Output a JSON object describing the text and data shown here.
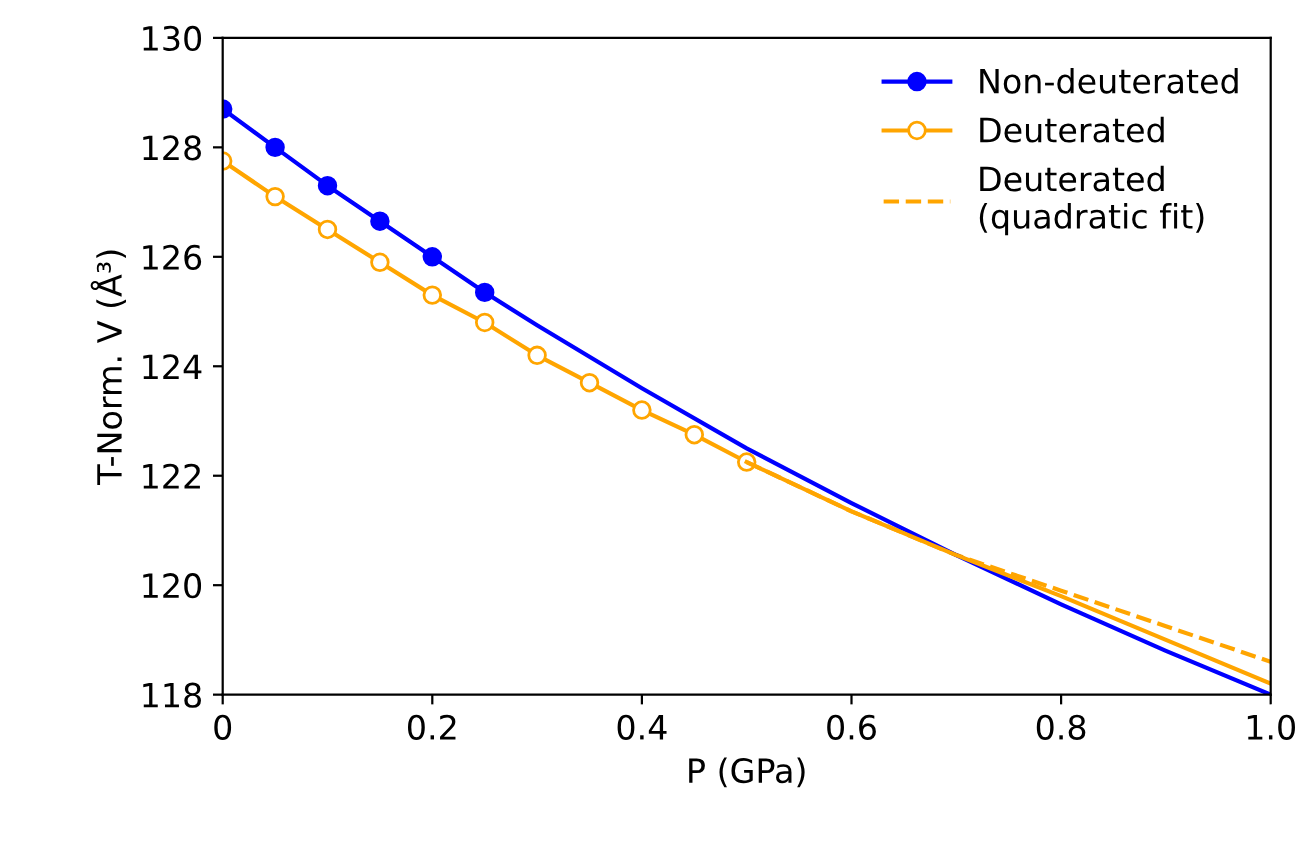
{
  "chart_data": {
    "type": "line",
    "xlabel": "P (GPa)",
    "ylabel": "T-Norm. V (Å³)",
    "xlim": [
      0,
      1
    ],
    "xticks": [
      0,
      0.2,
      0.4,
      0.6,
      0.8,
      {
        "value": 1,
        "label": "1.0"
      }
    ],
    "ylim": [
      118,
      130
    ],
    "yticks": [
      118,
      120,
      122,
      124,
      126,
      128,
      130
    ],
    "grid": false,
    "legend": "top right",
    "series": [
      {
        "name": "Non-deuterated",
        "color": "#0000ff",
        "marker": "circle",
        "line_style": "solid",
        "x": [
          0,
          0.05,
          0.1,
          0.15,
          0.2,
          0.25
        ],
        "values": [
          128.7,
          128.0,
          127.3,
          126.65,
          126.0,
          125.35
        ]
      },
      {
        "name": "Deuterated",
        "color": "#ffa500",
        "marker": "circle",
        "line_style": "solid",
        "x": [
          0,
          0.05,
          0.1,
          0.15,
          0.2,
          0.25,
          0.3,
          0.35,
          0.4,
          0.45,
          0.5
        ],
        "values": [
          127.75,
          127.1,
          126.5,
          125.9,
          125.3,
          124.8,
          124.2,
          123.7,
          123.2,
          122.75,
          122.25
        ]
      },
      {
        "name": "Deuterated\n(quadratic fit)",
        "color": "#ffa500",
        "marker": "none",
        "line_style": "dashed",
        "x": [
          0.5,
          0.6,
          0.7,
          0.8,
          0.9,
          1.0
        ],
        "values": [
          122.25,
          121.35,
          120.55,
          119.9,
          119.25,
          118.6
        ]
      },
      {
        "color": "#0000ff",
        "marker": "none",
        "line_style": "solid",
        "x": [
          0.25,
          0.3,
          0.4,
          0.5,
          0.6,
          0.7,
          0.8,
          0.9,
          1.0
        ],
        "values": [
          125.35,
          124.75,
          123.6,
          122.5,
          121.5,
          120.55,
          119.65,
          118.8,
          118.0
        ]
      },
      {
        "color": "#ffa500",
        "marker": "none",
        "line_style": "solid",
        "x": [
          0.5,
          0.6,
          0.7,
          0.8,
          0.9,
          1.0
        ],
        "values": [
          122.25,
          121.35,
          120.55,
          119.8,
          119.0,
          118.2
        ]
      }
    ]
  }
}
